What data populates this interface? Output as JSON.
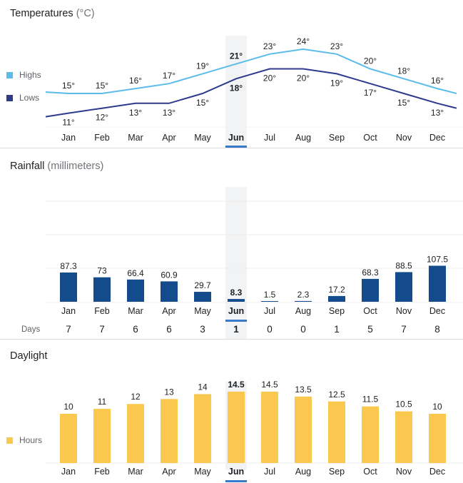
{
  "months": [
    "Jan",
    "Feb",
    "Mar",
    "Apr",
    "May",
    "Jun",
    "Jul",
    "Aug",
    "Sep",
    "Oct",
    "Nov",
    "Dec"
  ],
  "selected_month": "Jun",
  "colors": {
    "highs": "#5bbcea",
    "lows": "#2e3a8c",
    "rain": "#134b8c",
    "daylight": "#fbc84f",
    "highlight": "#f1f3f4",
    "selected_underline": "#3a78c9"
  },
  "chart_data": [
    {
      "type": "line",
      "title": "Temperatures",
      "unit": "(°C)",
      "categories": [
        "Jan",
        "Feb",
        "Mar",
        "Apr",
        "May",
        "Jun",
        "Jul",
        "Aug",
        "Sep",
        "Oct",
        "Nov",
        "Dec"
      ],
      "series": [
        {
          "name": "Highs",
          "values": [
            15,
            15,
            16,
            17,
            19,
            21,
            23,
            24,
            23,
            20,
            18,
            16
          ]
        },
        {
          "name": "Lows",
          "values": [
            11,
            12,
            13,
            13,
            15,
            18,
            20,
            20,
            19,
            17,
            15,
            13
          ]
        }
      ],
      "legend": "left",
      "grid": false
    },
    {
      "type": "bar",
      "title": "Rainfall",
      "unit": "(millimeters)",
      "categories": [
        "Jan",
        "Feb",
        "Mar",
        "Apr",
        "May",
        "Jun",
        "Jul",
        "Aug",
        "Sep",
        "Oct",
        "Nov",
        "Dec"
      ],
      "values": [
        87.3,
        73,
        66.4,
        60.9,
        29.7,
        8.3,
        1.5,
        2.3,
        17.2,
        68.3,
        88.5,
        107.5
      ],
      "ylim": [
        0,
        300
      ],
      "grid": true,
      "days_label": "Days",
      "days": [
        7,
        7,
        6,
        6,
        3,
        1,
        0,
        0,
        1,
        5,
        7,
        8
      ]
    },
    {
      "type": "bar",
      "title": "Daylight",
      "categories": [
        "Jan",
        "Feb",
        "Mar",
        "Apr",
        "May",
        "Jun",
        "Jul",
        "Aug",
        "Sep",
        "Oct",
        "Nov",
        "Dec"
      ],
      "series": [
        {
          "name": "Hours",
          "values": [
            10,
            11,
            12,
            13,
            14,
            14.5,
            14.5,
            13.5,
            12.5,
            11.5,
            10.5,
            10
          ]
        }
      ],
      "legend": "left",
      "grid": false
    }
  ]
}
